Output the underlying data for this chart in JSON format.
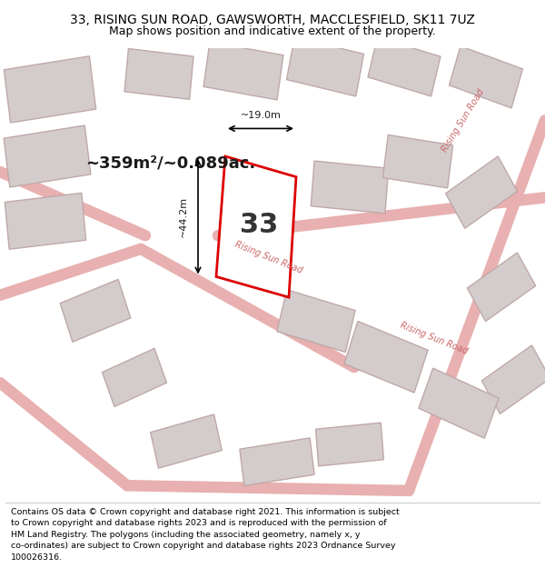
{
  "title": "33, RISING SUN ROAD, GAWSWORTH, MACCLESFIELD, SK11 7UZ",
  "subtitle": "Map shows position and indicative extent of the property.",
  "area_text": "~359m²/~0.089ac.",
  "dim1_text": "~44.2m",
  "dim2_text": "~19.0m",
  "property_number": "33",
  "footer_text": "Contains OS data © Crown copyright and database right 2021. This information is subject\nto Crown copyright and database rights 2023 and is reproduced with the permission of\nHM Land Registry. The polygons (including the associated geometry, namely x, y\nco-ordinates) are subject to Crown copyright and database rights 2023 Ordnance Survey\n100026316.",
  "bg_color": "#f0eded",
  "road_color": "#e8b0b0",
  "building_fill": "#d4cccc",
  "building_stroke": "#c0a8a8",
  "highlight_fill": "#ffffff",
  "highlight_stroke": "#dd0000",
  "title_fontsize": 10,
  "subtitle_fontsize": 9,
  "footer_fontsize": 6.8
}
